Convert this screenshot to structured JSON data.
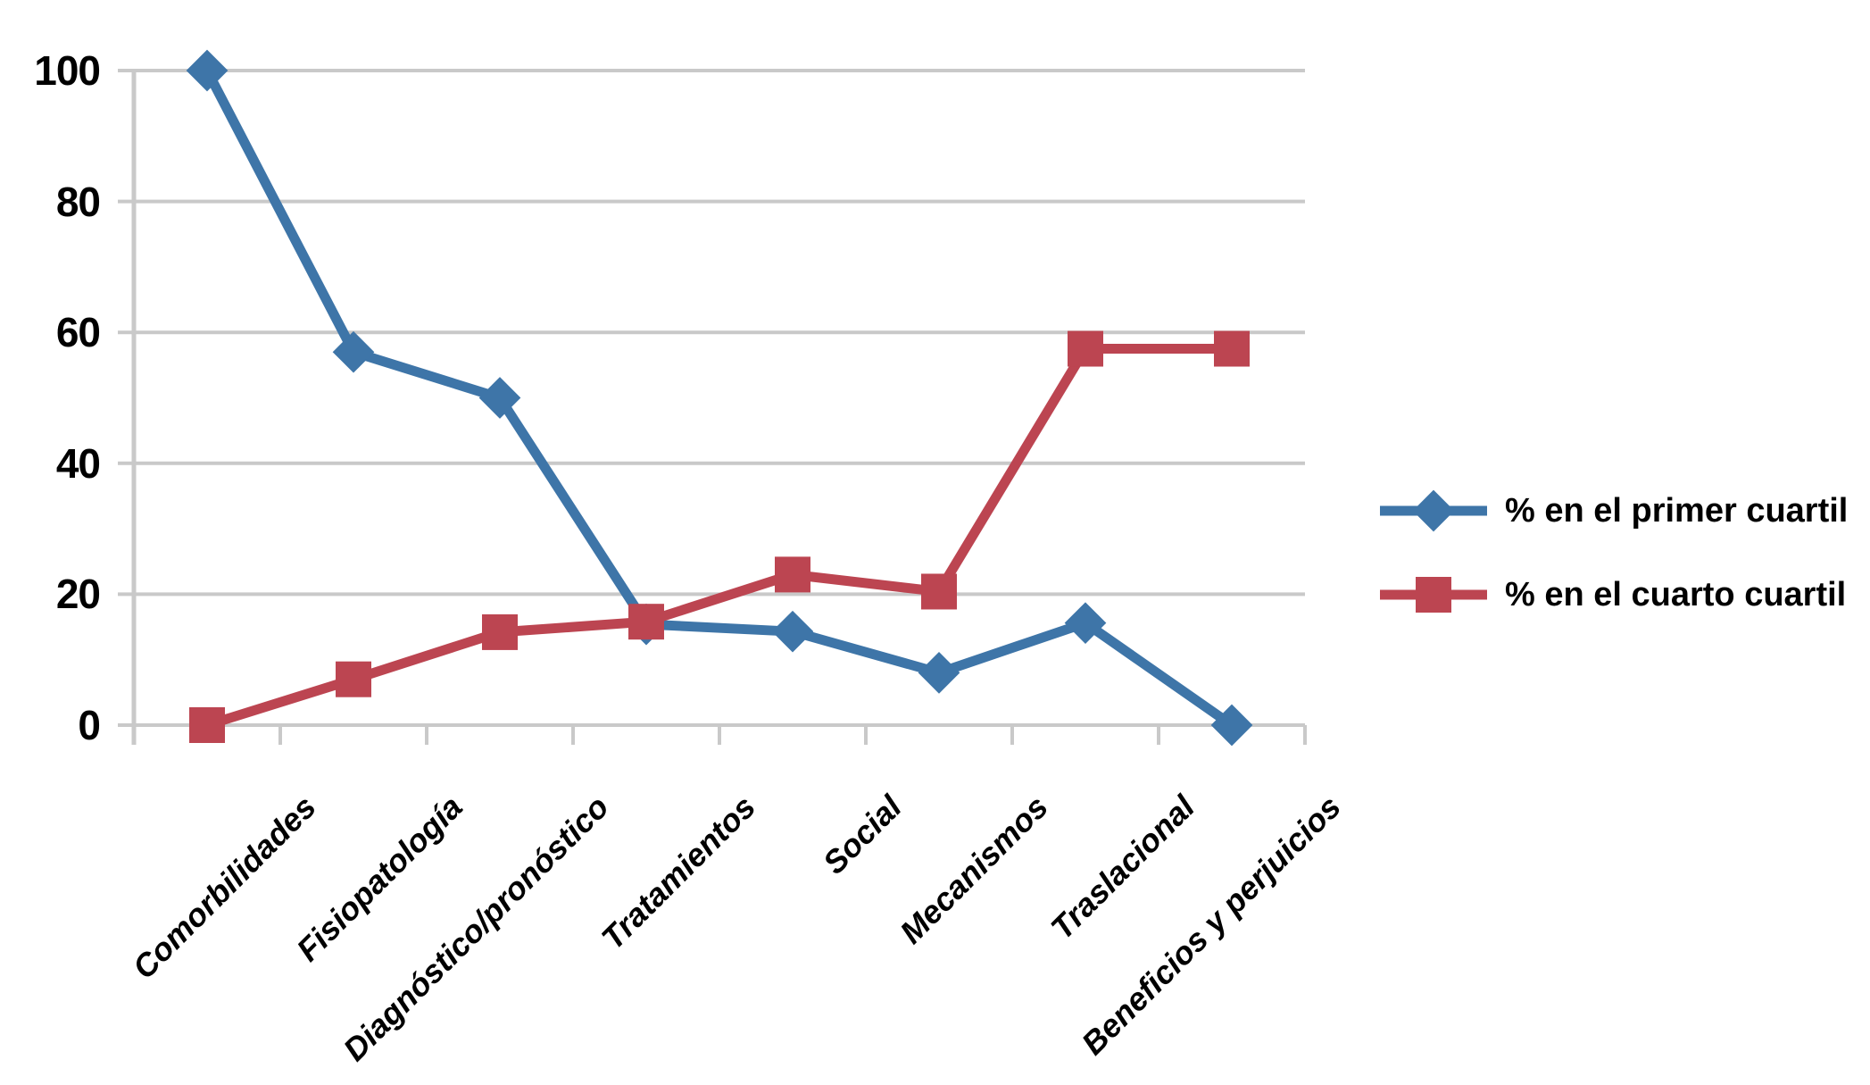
{
  "chart_data": {
    "type": "line",
    "title": "",
    "xlabel": "",
    "ylabel": "",
    "categories": [
      "Comorbilidades",
      "Fisiopatología",
      "Diagnóstico/pronóstico",
      "Tratamientos",
      "Social",
      "Mecanismos",
      "Traslacional",
      "Beneficios y perjuicios"
    ],
    "series": [
      {
        "name": "% en el primer cuartil",
        "marker": "diamond",
        "color": "#3E75A8",
        "values": [
          100,
          57,
          50,
          15.4,
          14.3,
          8,
          15.6,
          0
        ]
      },
      {
        "name": "% en el cuarto cuartil",
        "marker": "square",
        "color": "#BC4551",
        "values": [
          0,
          7,
          14.2,
          15.8,
          23,
          20.4,
          57.5,
          57.5
        ]
      }
    ],
    "ylim": [
      0,
      100
    ],
    "y_ticks": [
      0,
      20,
      40,
      60,
      80,
      100
    ],
    "grid": "horizontal",
    "legend_position": "right",
    "gridline_color": "#C9C9C9",
    "axis_color": "#C9C9C9",
    "background_color": "#FFFFFF",
    "text_color": "#000000"
  }
}
